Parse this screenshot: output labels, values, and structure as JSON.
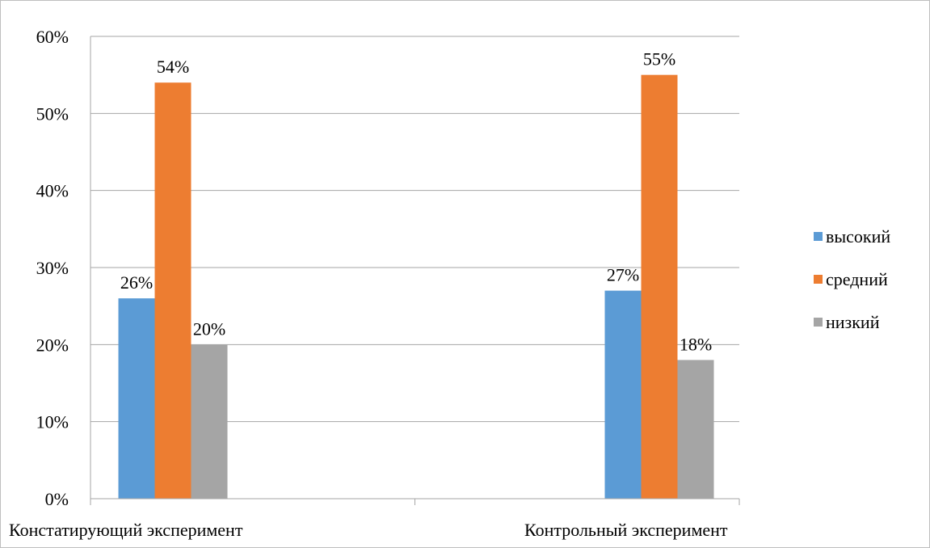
{
  "chart_data": {
    "type": "bar",
    "title": "",
    "xlabel": "",
    "ylabel": "",
    "categories": [
      "Констатирующий эксперимент",
      "Контрольный эксперимент"
    ],
    "series": [
      {
        "name": "высокий",
        "values": [
          26,
          27
        ],
        "labels": [
          "26%",
          "27%"
        ],
        "color": "#5b9bd5"
      },
      {
        "name": "средний",
        "values": [
          54,
          55
        ],
        "labels": [
          "54%",
          "55%"
        ],
        "color": "#ed7d31"
      },
      {
        "name": "низкий",
        "values": [
          20,
          18
        ],
        "labels": [
          "20%",
          "18%"
        ],
        "color": "#a5a5a5"
      }
    ],
    "ylim": [
      0,
      60
    ],
    "yticks": [
      0,
      10,
      20,
      30,
      40,
      50,
      60
    ],
    "ytick_labels": [
      "0%",
      "10%",
      "20%",
      "30%",
      "40%",
      "50%",
      "60%"
    ],
    "grid": "horizontal",
    "legend_position": "right",
    "gridline_color": "#a6a6a6"
  }
}
